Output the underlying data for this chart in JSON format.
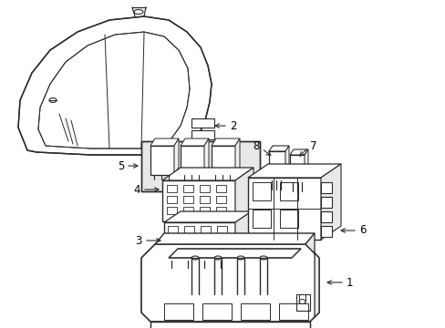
{
  "background_color": "#ffffff",
  "line_color": "#2a2a2a",
  "label_color": "#000000",
  "label_fontsize": 8.5,
  "fig_width": 4.89,
  "fig_height": 3.6,
  "dpi": 100
}
